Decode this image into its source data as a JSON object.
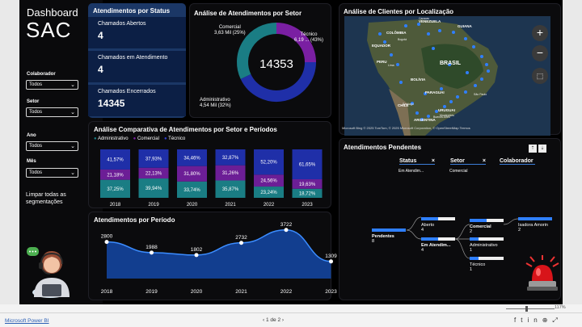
{
  "sidebar": {
    "title": "Dashboard",
    "subtitle": "SAC",
    "filters": [
      {
        "label": "Colaborador",
        "value": "Todos"
      },
      {
        "label": "Setor",
        "value": "Todos"
      },
      {
        "label": "Ano",
        "value": "Todos"
      },
      {
        "label": "Mês",
        "value": "Todos"
      }
    ],
    "clear_label": "Limpar todas as segmentações"
  },
  "status": {
    "title": "Atendimentos por Status",
    "rows": [
      {
        "label": "Chamados Abertos",
        "value": "4"
      },
      {
        "label": "Chamados em Atendimento",
        "value": "4"
      },
      {
        "label": "Chamados Encerrados",
        "value": "14345"
      }
    ]
  },
  "sector": {
    "title": "Análise de Atendimentos por Setor",
    "total": "14353",
    "slices": [
      {
        "name": "Comercial",
        "label": "3,63 Mil (25%)",
        "value": 25,
        "color": "#7a1fa2"
      },
      {
        "name": "Técnico",
        "label": "6,19 ... (43%)",
        "value": 43,
        "color": "#1f2fa8"
      },
      {
        "name": "Administrativo",
        "label": "4,54 Mil (32%)",
        "value": 32,
        "color": "#1a7d84"
      }
    ]
  },
  "map": {
    "title": "Análise de Clientes por Localização",
    "countries": [
      "COLÔMBIA",
      "EQUADOR",
      "PERU",
      "BRASIL",
      "BOLÍVIA",
      "PARAGUAI",
      "CHILE",
      "URUGUAI",
      "ARGENTINA",
      "VENEZUELA",
      "GUIANA"
    ],
    "cities": [
      "São Paulo",
      "Buenos Aires",
      "Montevidéu",
      "Bogotá",
      "Caracas",
      "Lima",
      "Santiago"
    ],
    "attribution": "© 2025 TomTom, © 2025 Microsoft Corporation, © OpenStreetMap  Termos",
    "brand": "Microsoft Bing"
  },
  "comparative": {
    "title": "Análise Comparativa de Atendimentos por Setor e Períodos",
    "legend": [
      "Administrativo",
      "Comercial",
      "Técnico"
    ],
    "colors": [
      "#1a7d84",
      "#6c1e96",
      "#1f2fa8"
    ],
    "years": [
      "2018",
      "2019",
      "2020",
      "2021",
      "2022",
      "2023"
    ],
    "adm": [
      "37,25%",
      "39,94%",
      "33,74%",
      "35,87%",
      "23,24%",
      "18,72%"
    ],
    "com": [
      "21,18%",
      "22,13%",
      "31,80%",
      "31,26%",
      "24,56%",
      "19,63%"
    ],
    "tec": [
      "41,57%",
      "37,93%",
      "34,46%",
      "32,87%",
      "52,20%",
      "61,65%"
    ],
    "adm_v": [
      37.25,
      39.94,
      33.74,
      35.87,
      23.24,
      18.72
    ],
    "com_v": [
      21.18,
      22.13,
      31.8,
      31.26,
      24.56,
      19.63
    ],
    "tec_v": [
      41.57,
      37.93,
      34.46,
      32.87,
      52.2,
      61.65
    ]
  },
  "period": {
    "title": "Atendimentos por Período",
    "years": [
      "2018",
      "2019",
      "2020",
      "2021",
      "2022",
      "2023"
    ],
    "values": [
      2800,
      1988,
      1802,
      2732,
      3722,
      1309
    ],
    "labels": [
      "2800",
      "1988",
      "1802",
      "2732",
      "3722",
      "1309"
    ]
  },
  "pending": {
    "title": "Atendimentos Pendentes",
    "headers": [
      "Status",
      "Setor",
      "Colaborador"
    ],
    "subheaders": [
      "Em Atendim...",
      "Comercial",
      ""
    ],
    "nodes": {
      "root": {
        "label": "Pendentes",
        "value": "8"
      },
      "aberto": {
        "label": "Aberto",
        "value": "4"
      },
      "em": {
        "label": "Em Atendim...",
        "value": "4"
      },
      "comercial": {
        "label": "Comercial",
        "value": "2"
      },
      "admin": {
        "label": "Administrativo",
        "value": "1"
      },
      "tecnico": {
        "label": "Técnico",
        "value": "1"
      },
      "isadora": {
        "label": "Isadora Amorin",
        "value": "2"
      }
    }
  },
  "bottom": {
    "app": "Microsoft Power BI",
    "page": "1 de 2",
    "zoom": "117%"
  },
  "chart_data": [
    {
      "type": "pie",
      "title": "Análise de Atendimentos por Setor",
      "categories": [
        "Comercial",
        "Técnico",
        "Administrativo"
      ],
      "values": [
        3630,
        6190,
        4540
      ],
      "center_label": "14353"
    },
    {
      "type": "bar",
      "title": "Análise Comparativa de Atendimentos por Setor e Períodos",
      "categories": [
        "2018",
        "2019",
        "2020",
        "2021",
        "2022",
        "2023"
      ],
      "series": [
        {
          "name": "Administrativo",
          "values": [
            37.25,
            39.94,
            33.74,
            35.87,
            23.24,
            18.72
          ]
        },
        {
          "name": "Comercial",
          "values": [
            21.18,
            22.13,
            31.8,
            31.26,
            24.56,
            19.63
          ]
        },
        {
          "name": "Técnico",
          "values": [
            41.57,
            37.93,
            34.46,
            32.87,
            52.2,
            61.65
          ]
        }
      ]
    },
    {
      "type": "area",
      "title": "Atendimentos por Período",
      "x": [
        "2018",
        "2019",
        "2020",
        "2021",
        "2022",
        "2023"
      ],
      "values": [
        2800,
        1988,
        1802,
        2732,
        3722,
        1309
      ]
    }
  ]
}
